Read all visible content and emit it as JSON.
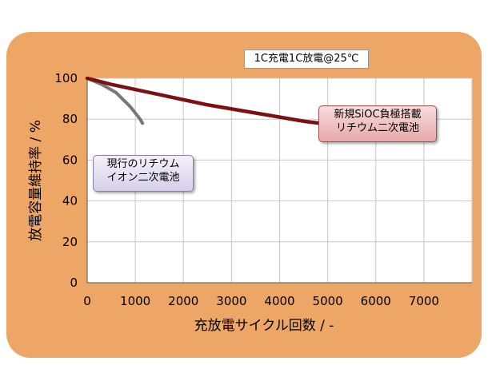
{
  "colors": {
    "frame": "#eda665",
    "plot_bg": "#ffffff",
    "curve": "#7a1212",
    "gray_curve": "#777777",
    "grid": "#c8c8c8"
  },
  "chart_data": {
    "type": "line",
    "title": "1C充電1C放電@25℃",
    "xlabel": "充放電サイクル回数 / -",
    "ylabel": "放電容量維持率 / %",
    "xlim": [
      0,
      8000
    ],
    "ylim": [
      0,
      100
    ],
    "xticks": [
      "0",
      "1000",
      "2000",
      "3000",
      "4000",
      "5000",
      "6000",
      "7000"
    ],
    "yticks": [
      "0",
      "20",
      "40",
      "60",
      "80",
      "100"
    ],
    "grid": true,
    "series": [
      {
        "name": "新規SiOC負極搭載リチウム二次電池",
        "x": [
          0,
          500,
          1000,
          1500,
          2000,
          2500,
          3000,
          3500,
          4000,
          4500,
          5000,
          5500,
          6000,
          6500,
          7000,
          7200
        ],
        "values": [
          100,
          97,
          94.5,
          92,
          89.5,
          87,
          85,
          83,
          81,
          79,
          77.5,
          76,
          74.5,
          73.5,
          72.5,
          72
        ]
      },
      {
        "name": "現行のリチウムイオン二次電池",
        "x": [
          0,
          300,
          600,
          900,
          1100,
          1150
        ],
        "values": [
          100,
          97,
          93,
          86,
          80,
          78
        ]
      }
    ],
    "annotations": [
      {
        "label": [
          "新規SiOC負極搭載",
          "リチウム二次電池"
        ]
      },
      {
        "label": [
          "現行のリチウム",
          "イオン二次電池"
        ]
      }
    ]
  }
}
